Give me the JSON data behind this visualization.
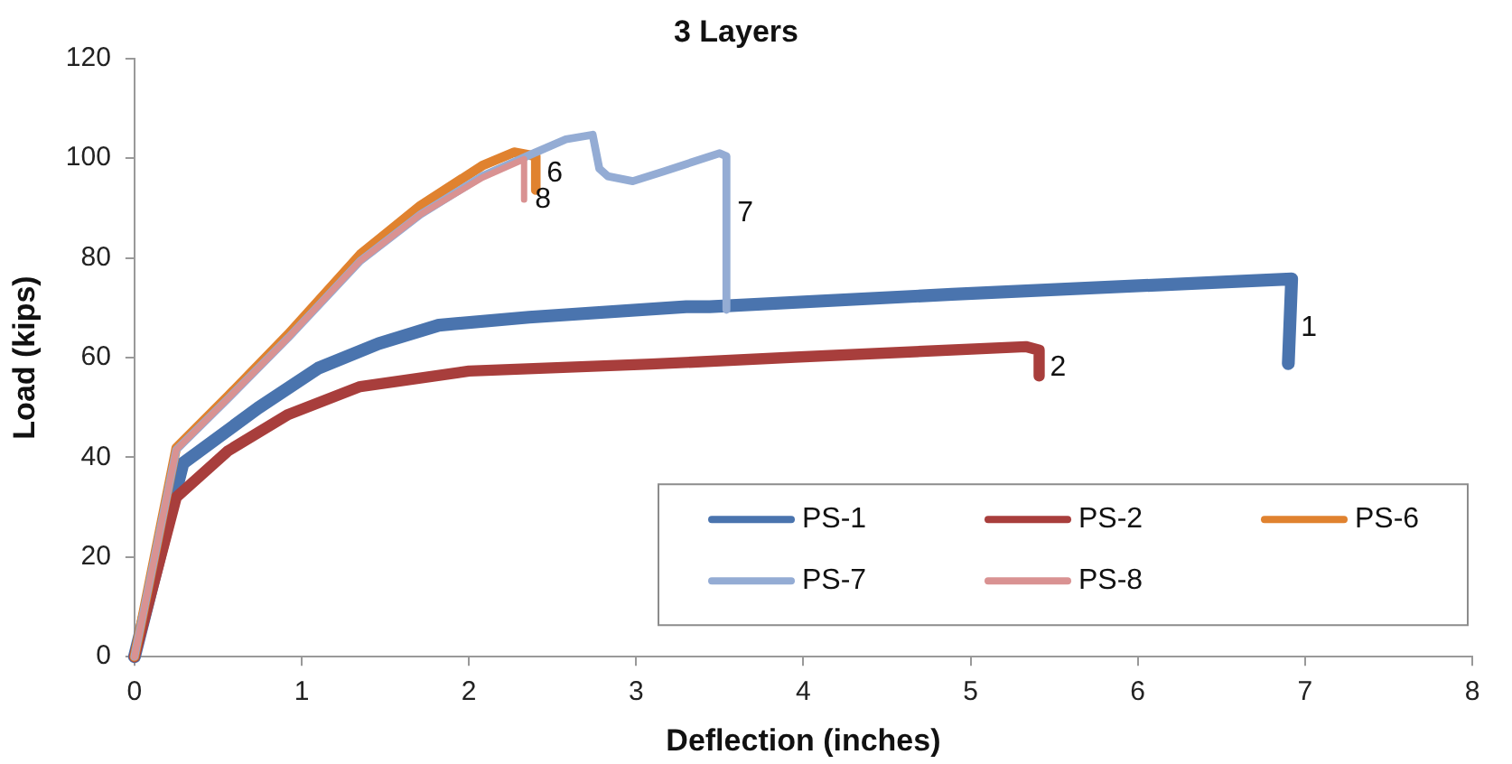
{
  "chart_data": {
    "type": "line",
    "title": "3 Layers",
    "xlabel": "Deflection (inches)",
    "ylabel": "Load (kips)",
    "xlim": [
      0,
      8
    ],
    "xticks": [
      0,
      1,
      2,
      3,
      4,
      5,
      6,
      7,
      8
    ],
    "ylim": [
      0,
      120
    ],
    "yticks": [
      0,
      20,
      40,
      60,
      80,
      100,
      120
    ],
    "grid": false,
    "legend": "bottom right",
    "marker": "none",
    "line_style": "solid",
    "series": [
      {
        "name": "PS-1",
        "color": "#4a74ae",
        "x": [
          0,
          0.29,
          0.74,
          1.1,
          1.46,
          1.82,
          2.36,
          3.3,
          3.44,
          4.89,
          6.92,
          6.9
        ],
        "values": [
          0,
          38.8,
          49.9,
          57.9,
          62.8,
          66.5,
          68.1,
          70.2,
          70.2,
          72.7,
          75.8,
          58.8
        ]
      },
      {
        "name": "PS-2",
        "color": "#a83e3c",
        "x": [
          0,
          0.25,
          0.56,
          0.92,
          1.35,
          2.0,
          3.09,
          3.95,
          5.33,
          5.41,
          5.41
        ],
        "values": [
          0,
          32,
          41.3,
          48.6,
          54.2,
          57.3,
          58.7,
          60.1,
          62.2,
          61.5,
          56.3
        ]
      },
      {
        "name": "PS-6",
        "color": "#e0822f",
        "x": [
          0,
          0.25,
          0.56,
          0.92,
          1.35,
          1.71,
          2.08,
          2.27,
          2.4,
          2.4
        ],
        "values": [
          0,
          41.9,
          52.3,
          64.7,
          80.7,
          90.5,
          98.5,
          101.2,
          100.4,
          93.6
        ]
      },
      {
        "name": "PS-7",
        "color": "#94acd4",
        "x": [
          0,
          0.25,
          0.56,
          0.92,
          1.35,
          1.71,
          2.08,
          2.36,
          2.58,
          2.74,
          2.78,
          2.83,
          2.98,
          3.16,
          3.5,
          3.54,
          3.54
        ],
        "values": [
          0,
          41.5,
          51.8,
          64,
          79.4,
          88.7,
          96.4,
          100.6,
          103.8,
          104.7,
          97.9,
          96.4,
          95.4,
          97.3,
          101,
          100.4,
          69.6
        ]
      },
      {
        "name": "PS-8",
        "color": "#d99292",
        "x": [
          0,
          0.25,
          0.56,
          0.92,
          1.35,
          1.71,
          2.08,
          2.33,
          2.33
        ],
        "values": [
          0,
          41.5,
          51.8,
          64,
          79.4,
          88.7,
          96.1,
          99.8,
          91.7
        ]
      }
    ],
    "annotations": [
      {
        "text": "1",
        "x": 6.91,
        "y": 66
      },
      {
        "text": "2",
        "x": 5.41,
        "y": 58
      },
      {
        "text": "6",
        "x": 2.4,
        "y": 97
      },
      {
        "text": "7",
        "x": 3.54,
        "y": 89
      },
      {
        "text": "8",
        "x": 2.33,
        "y": 91.7
      }
    ]
  }
}
